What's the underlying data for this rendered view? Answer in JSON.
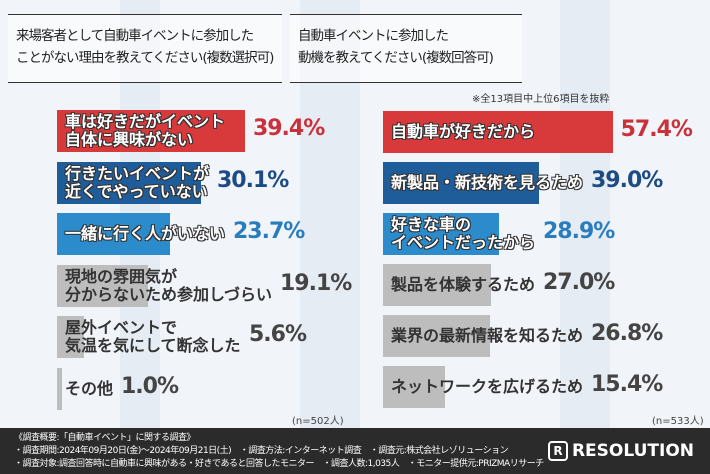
{
  "chart_data": [
    {
      "type": "bar",
      "orientation": "horizontal",
      "title": "来場客者として自動車イベントに参加したことがない理由を教えてください(複数選択可)",
      "title_lines": [
        "来場客者として自動車イベントに参加した",
        "ことがない理由を教えてください(複数選択可)"
      ],
      "unit": "%",
      "n_label": "(n=502人)",
      "categories": [
        "車は好きだがイベント自体に興味がない",
        "行きたいイベントが近くでやっていない",
        "一緒に行く人がいない",
        "現地の雰囲気が分からないため参加しづらい",
        "屋外イベントで気温を気にして断念した",
        "その他"
      ],
      "label_lines": [
        [
          "車は好きだがイベント",
          "自体に興味がない"
        ],
        [
          "行きたいイベントが",
          "近くでやっていない"
        ],
        [
          "一緒に行く人がいない"
        ],
        [
          "現地の雰囲気が",
          "分からないため参加しづらい"
        ],
        [
          "屋外イベントで",
          "気温を気にして断念した"
        ],
        [
          "その他"
        ]
      ],
      "values": [
        39.4,
        30.1,
        23.7,
        19.1,
        5.6,
        1.0
      ],
      "value_labels": [
        "39.4%",
        "30.1%",
        "23.7%",
        "19.1%",
        "5.6%",
        "1.0%"
      ],
      "colors": [
        "#d8393b",
        "#1f5c9a",
        "#2b8bcb",
        "#bdbdbd",
        "#bdbdbd",
        "#bdbdbd"
      ],
      "value_colors": [
        "#c9313b",
        "#1d4c84",
        "#2a7dbd",
        "#444444",
        "#444444",
        "#444444"
      ]
    },
    {
      "type": "bar",
      "orientation": "horizontal",
      "title": "自動車イベントに参加した動機を教えてください(複数回答可)",
      "title_lines": [
        "自動車イベントに参加した",
        "動機を教えてください(複数回答可)"
      ],
      "note": "※全13項目中上位6項目を抜粋",
      "unit": "%",
      "n_label": "(n=533人)",
      "categories": [
        "自動車が好きだから",
        "新製品・新技術を見るため",
        "好きな車のイベントだったから",
        "製品を体験するため",
        "業界の最新情報を知るため",
        "ネットワークを広げるため"
      ],
      "label_lines": [
        [
          "自動車が好きだから"
        ],
        [
          "新製品・新技術を見るため"
        ],
        [
          "好きな車の",
          "イベントだったから"
        ],
        [
          "製品を体験するため"
        ],
        [
          "業界の最新情報を知るため"
        ],
        [
          "ネットワークを広げるため"
        ]
      ],
      "values": [
        57.4,
        39.0,
        28.9,
        27.0,
        26.8,
        15.4
      ],
      "value_labels": [
        "57.4%",
        "39.0%",
        "28.9%",
        "27.0%",
        "26.8%",
        "15.4%"
      ],
      "colors": [
        "#d8393b",
        "#1f5c9a",
        "#2b8bcb",
        "#bdbdbd",
        "#bdbdbd",
        "#bdbdbd"
      ],
      "value_colors": [
        "#c9313b",
        "#1d4c84",
        "#2a7dbd",
        "#444444",
        "#444444",
        "#444444"
      ]
    }
  ],
  "footer": {
    "lines": [
      "《調査概要:「自動車イベント」に関する調査》",
      "・調査期間:2024年09月20日(金)～2024年09月21日(土)　・調査方法:インターネット調査　・調査元:株式会社レゾリューション",
      "・調査対象:調査回答時に自動車に興味がある・好きであると回答したモニター　・調査人数:1,035人　・モニター提供元:PRIZMAリサーチ"
    ],
    "logo": "RESOLUTION"
  }
}
